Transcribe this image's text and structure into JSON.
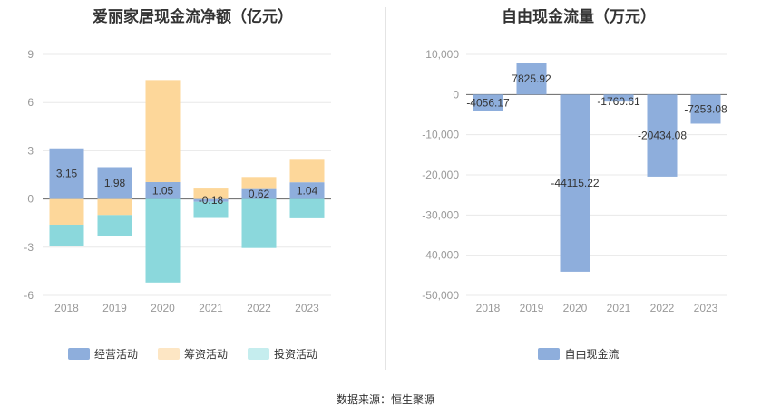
{
  "colors": {
    "operating": "#8eaedc",
    "financing": "#fdd79a",
    "investing": "#8bd8dc",
    "fcf": "#8eaedc",
    "legend_financing": "#fde6c4",
    "legend_investing": "#c5edee"
  },
  "source": "数据来源：恒生聚源",
  "chart_data": [
    {
      "type": "bar",
      "stacked": true,
      "title": "爱丽家居现金流净额（亿元）",
      "categories": [
        "2018",
        "2019",
        "2020",
        "2021",
        "2022",
        "2023"
      ],
      "yticks": [
        "9",
        "6",
        "3",
        "0",
        "-3",
        "-6"
      ],
      "ylim": [
        -6,
        9
      ],
      "legend_position": "bottom",
      "series": [
        {
          "name": "经营活动",
          "values": [
            3.15,
            1.98,
            1.05,
            -0.18,
            0.62,
            1.04
          ],
          "labels": [
            "3.15",
            "1.98",
            "1.05",
            "-0.18",
            "0.62",
            "1.04"
          ]
        },
        {
          "name": "筹资活动",
          "values": [
            -1.6,
            -1.0,
            6.35,
            0.65,
            0.75,
            1.4
          ]
        },
        {
          "name": "投资活动",
          "values": [
            -1.3,
            -1.3,
            -5.2,
            -1.0,
            -3.05,
            -1.2
          ]
        }
      ]
    },
    {
      "type": "bar",
      "title": "自由现金流量（万元）",
      "categories": [
        "2018",
        "2019",
        "2020",
        "2021",
        "2022",
        "2023"
      ],
      "yticks": [
        "10,000",
        "0",
        "-10,000",
        "-20,000",
        "-30,000",
        "-40,000",
        "-50,000"
      ],
      "ylim": [
        -50000,
        10000
      ],
      "legend_position": "bottom",
      "series": [
        {
          "name": "自由现金流",
          "values": [
            -4056.17,
            7825.92,
            -44115.22,
            -1760.61,
            -20434.08,
            -7253.08
          ],
          "labels": [
            "-4056.17",
            "7825.92",
            "-44115.22",
            "-1760.61",
            "-20434.08",
            "-7253.08"
          ]
        }
      ]
    }
  ]
}
